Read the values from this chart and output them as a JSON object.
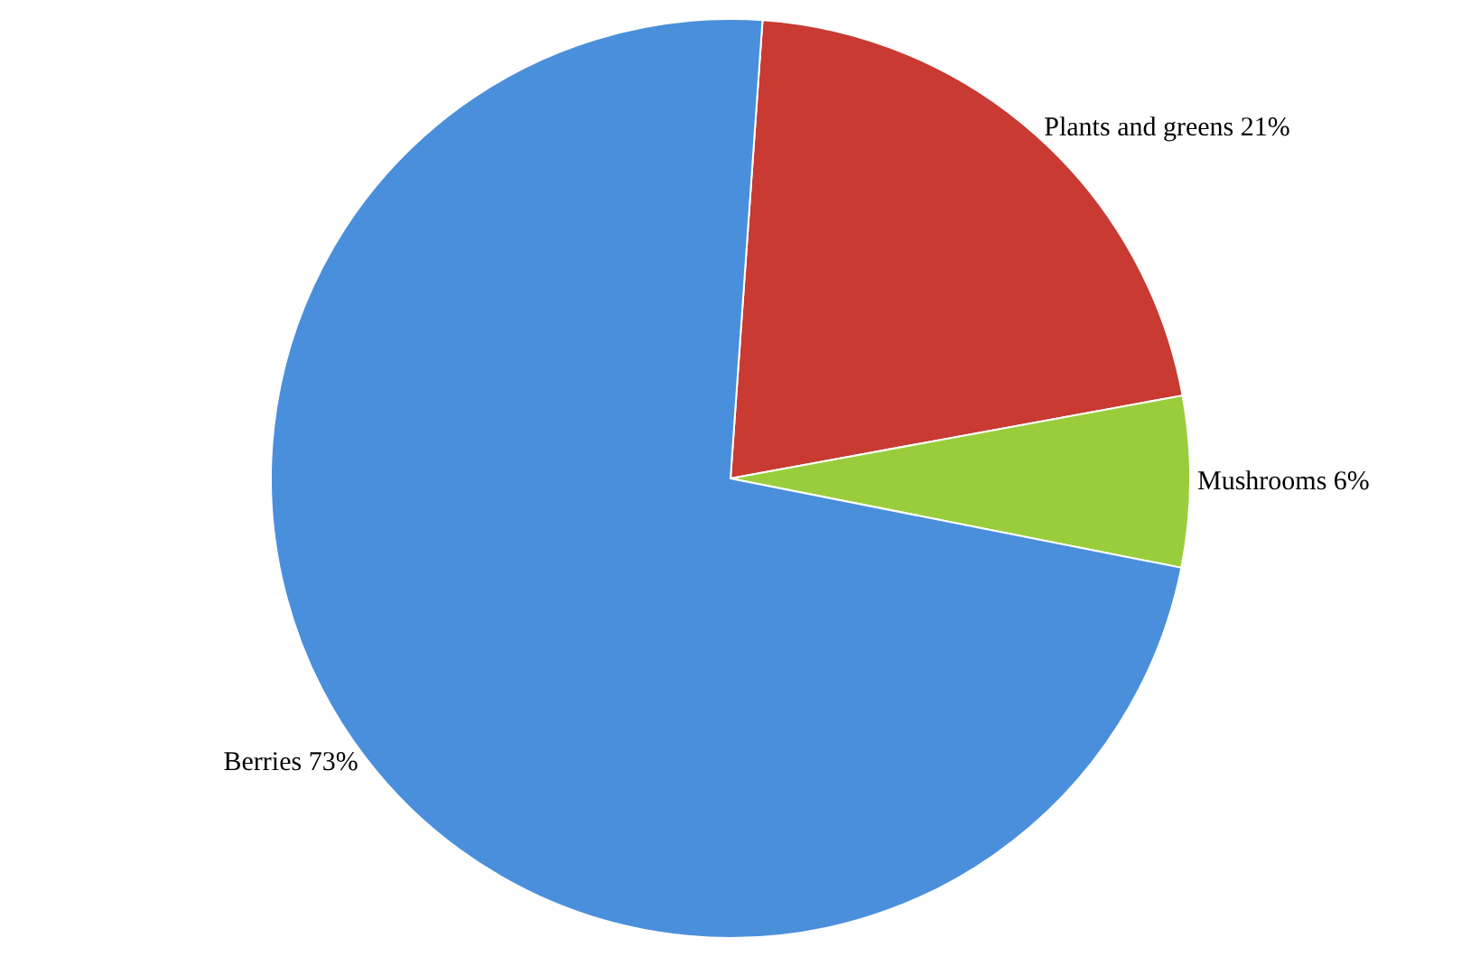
{
  "chart_data": {
    "type": "pie",
    "categories": [
      "Plants and greens",
      "Mushrooms",
      "Berries"
    ],
    "values": [
      21,
      6,
      73
    ],
    "value_labels": [
      "21%",
      "6%",
      "73%"
    ],
    "colors": [
      "#c83a32",
      "#9acd3c",
      "#4a8fdc"
    ],
    "legend": false
  }
}
